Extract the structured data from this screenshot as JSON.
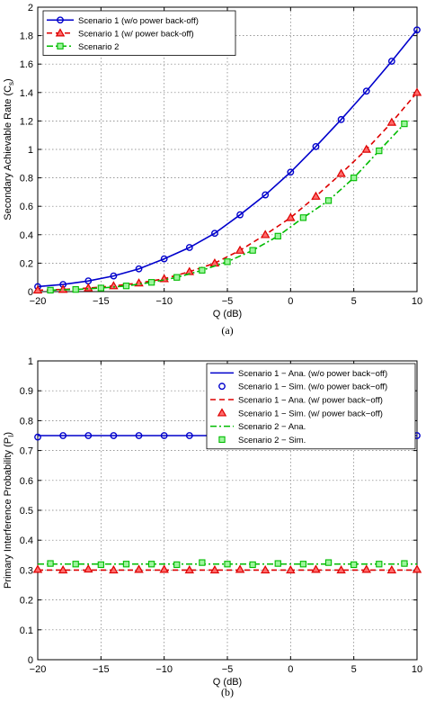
{
  "chart_data": [
    {
      "type": "line",
      "caption": "(a)",
      "xlabel": "Q (dB)",
      "ylabel": "Secondary Achievable Rate (C",
      "ylabel_sub": "s",
      "ylabel_close": ")",
      "xlim": [
        -20,
        10
      ],
      "ylim": [
        0,
        2
      ],
      "xticks": [
        -20,
        -15,
        -10,
        -5,
        0,
        5,
        10
      ],
      "xtick_labels": [
        "−20",
        "−15",
        "−10",
        "−5",
        "0",
        "5",
        "10"
      ],
      "yticks": [
        0,
        0.2,
        0.4,
        0.6,
        0.8,
        1,
        1.2,
        1.4,
        1.6,
        1.8,
        2
      ],
      "ytick_labels": [
        "0",
        "0.2",
        "0.4",
        "0.6",
        "0.8",
        "1",
        "1.2",
        "1.4",
        "1.6",
        "1.8",
        "2"
      ],
      "grid": true,
      "legend_position": "top-left",
      "series": [
        {
          "name": "Scenario 1 (w/o power back-off)",
          "color": "#0000cc",
          "line": "solid",
          "marker": "circle",
          "x": [
            -20,
            -18,
            -16,
            -14,
            -12,
            -10,
            -8,
            -6,
            -4,
            -2,
            0,
            2,
            4,
            6,
            8,
            10
          ],
          "y": [
            0.035,
            0.05,
            0.075,
            0.11,
            0.16,
            0.23,
            0.31,
            0.41,
            0.54,
            0.68,
            0.84,
            1.02,
            1.21,
            1.41,
            1.62,
            1.84
          ]
        },
        {
          "name": "Scenario 1 (w/ power back-off)",
          "color": "#dd0000",
          "line": "dashed",
          "marker": "triangle",
          "x": [
            -20,
            -18,
            -16,
            -14,
            -12,
            -10,
            -8,
            -6,
            -4,
            -2,
            0,
            2,
            4,
            6,
            8,
            10
          ],
          "y": [
            0.01,
            0.015,
            0.025,
            0.04,
            0.06,
            0.09,
            0.14,
            0.2,
            0.29,
            0.4,
            0.52,
            0.67,
            0.83,
            1.0,
            1.19,
            1.4
          ]
        },
        {
          "name": "Scenario 2",
          "color": "#00bb00",
          "line": "dashdot",
          "marker": "square",
          "x": [
            -19,
            -17,
            -15,
            -13,
            -11,
            -9,
            -7,
            -5,
            -3,
            -1,
            1,
            3,
            5,
            7,
            9
          ],
          "y": [
            0.01,
            0.015,
            0.025,
            0.04,
            0.065,
            0.1,
            0.15,
            0.21,
            0.29,
            0.39,
            0.52,
            0.64,
            0.8,
            0.99,
            1.18
          ]
        }
      ]
    },
    {
      "type": "line",
      "caption": "(b)",
      "xlabel": "Q (dB)",
      "ylabel": "Primary Interference Probability (P",
      "ylabel_sub": "I",
      "ylabel_close": ")",
      "xlim": [
        -20,
        10
      ],
      "ylim": [
        0,
        1
      ],
      "xticks": [
        -20,
        -15,
        -10,
        -5,
        0,
        5,
        10
      ],
      "xtick_labels": [
        "−20",
        "−15",
        "−10",
        "−5",
        "0",
        "5",
        "10"
      ],
      "yticks": [
        0,
        0.1,
        0.2,
        0.3,
        0.4,
        0.5,
        0.6,
        0.7,
        0.8,
        0.9,
        1
      ],
      "ytick_labels": [
        "0",
        "0.1",
        "0.2",
        "0.3",
        "0.4",
        "0.5",
        "0.6",
        "0.7",
        "0.8",
        "0.9",
        "1"
      ],
      "grid": true,
      "legend_position": "top-right",
      "series": [
        {
          "name": "Scenario 1 − Ana. (w/o power back−off)",
          "color": "#0000cc",
          "line": "solid",
          "marker": "none",
          "x": [
            -20,
            10
          ],
          "y": [
            0.75,
            0.75
          ]
        },
        {
          "name": "Scenario 1 − Sim. (w/o power back−off)",
          "color": "#0000cc",
          "line": "none",
          "marker": "circle",
          "x": [
            -20,
            -18,
            -16,
            -14,
            -12,
            -10,
            -8,
            -6,
            -4,
            -2,
            0,
            2,
            4,
            6,
            8,
            10
          ],
          "y": [
            0.745,
            0.75,
            0.75,
            0.75,
            0.75,
            0.75,
            0.75,
            0.75,
            0.752,
            0.75,
            0.75,
            0.75,
            0.752,
            0.75,
            0.75,
            0.75
          ]
        },
        {
          "name": "Scenario 1 − Ana. (w/ power back−off)",
          "color": "#dd0000",
          "line": "dashed",
          "marker": "none",
          "x": [
            -20,
            10
          ],
          "y": [
            0.3,
            0.3
          ]
        },
        {
          "name": "Scenario 1 − Sim. (w/ power back−off)",
          "color": "#dd0000",
          "line": "none",
          "marker": "triangle",
          "x": [
            -20,
            -18,
            -16,
            -14,
            -12,
            -10,
            -8,
            -6,
            -4,
            -2,
            0,
            2,
            4,
            6,
            8,
            10
          ],
          "y": [
            0.302,
            0.3,
            0.303,
            0.3,
            0.302,
            0.302,
            0.3,
            0.3,
            0.302,
            0.3,
            0.3,
            0.302,
            0.3,
            0.302,
            0.3,
            0.302
          ]
        },
        {
          "name": "Scenario 2 − Ana.",
          "color": "#00bb00",
          "line": "dashdot",
          "marker": "none",
          "x": [
            -20,
            10
          ],
          "y": [
            0.32,
            0.32
          ]
        },
        {
          "name": "Scenario 2 − Sim.",
          "color": "#00bb00",
          "line": "none",
          "marker": "square",
          "x": [
            -19,
            -17,
            -15,
            -13,
            -11,
            -9,
            -7,
            -5,
            -3,
            -1,
            1,
            3,
            5,
            7,
            9
          ],
          "y": [
            0.322,
            0.32,
            0.318,
            0.32,
            0.32,
            0.318,
            0.325,
            0.32,
            0.318,
            0.322,
            0.32,
            0.325,
            0.318,
            0.32,
            0.322
          ]
        }
      ]
    }
  ]
}
